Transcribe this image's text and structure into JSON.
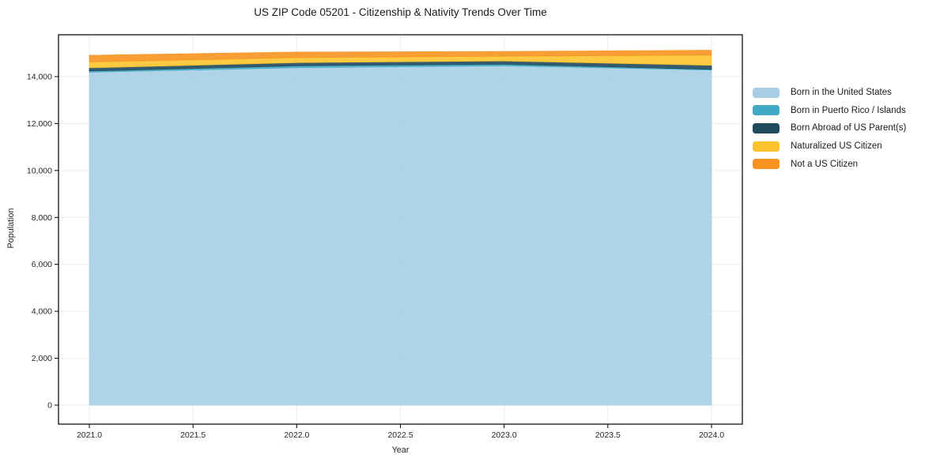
{
  "title": "US ZIP Code 05201 - Citizenship & Nativity Trends Over Time",
  "chart_data": {
    "type": "area",
    "stacked": true,
    "title": "US ZIP Code 05201 - Citizenship & Nativity Trends Over Time",
    "xlabel": "Year",
    "ylabel": "Population",
    "x": [
      2021,
      2022,
      2023,
      2024
    ],
    "series": [
      {
        "name": "Born in the United States",
        "color": "#a6cfe5",
        "values": [
          14190,
          14380,
          14460,
          14280
        ]
      },
      {
        "name": "Born in Puerto Rico / Islands",
        "color": "#41a9c4",
        "values": [
          50,
          80,
          70,
          30
        ]
      },
      {
        "name": "Born Abroad of US Parent(s)",
        "color": "#1f4a5e",
        "values": [
          135,
          135,
          135,
          170
        ]
      },
      {
        "name": "Naturalized US Citizen",
        "color": "#fcc32d",
        "values": [
          250,
          215,
          205,
          440
        ]
      },
      {
        "name": "Not a US Citizen",
        "color": "#f79421",
        "values": [
          285,
          235,
          205,
          205
        ]
      }
    ],
    "x_ticks": [
      "2021.0",
      "2021.5",
      "2022.0",
      "2022.5",
      "2023.0",
      "2023.5",
      "2024.0"
    ],
    "y_ticks": [
      "0",
      "2,000",
      "4,000",
      "6,000",
      "8,000",
      "10,000",
      "12,000",
      "14,000"
    ],
    "xlim": [
      2021,
      2024
    ],
    "ylim": [
      0,
      14000
    ],
    "grid": true,
    "legend_position": "right"
  },
  "colors": {
    "background": "#ffffff",
    "grid": "#ebebeb",
    "spine": "#000000",
    "tick_text": "#262626",
    "area_opacity": "0.9"
  }
}
